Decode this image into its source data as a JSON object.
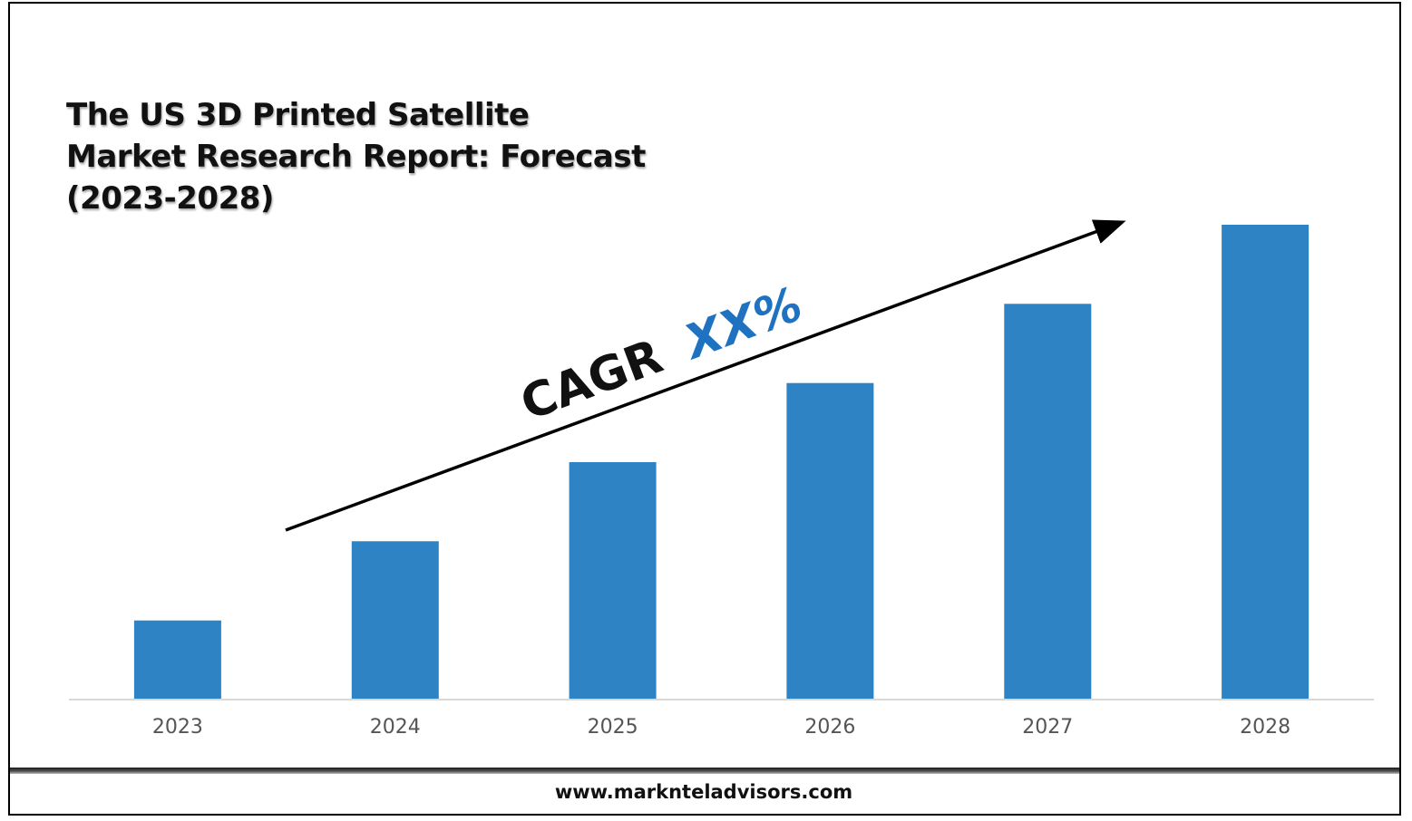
{
  "title": "The US 3D Printed Satellite Market Research Report: Forecast (2023-2028)",
  "footer": {
    "url": "www.marknteladvisors.com"
  },
  "colors": {
    "bar": "#2e83c4",
    "accent": "#1f72c0",
    "text": "#111111",
    "axis_labels": "#555555"
  },
  "annotation": {
    "prefix": "CAGR",
    "value": "XX%"
  },
  "chart_data": {
    "type": "bar",
    "title": "The US 3D Printed Satellite Market Research Report: Forecast (2023-2028)",
    "categories": [
      "2023",
      "2024",
      "2025",
      "2026",
      "2027",
      "2028"
    ],
    "values": [
      1,
      2,
      3,
      4,
      5,
      6
    ],
    "ylim": [
      0,
      6
    ],
    "grid": false,
    "legend": "none",
    "annotations": [
      "CAGR XX%"
    ]
  }
}
